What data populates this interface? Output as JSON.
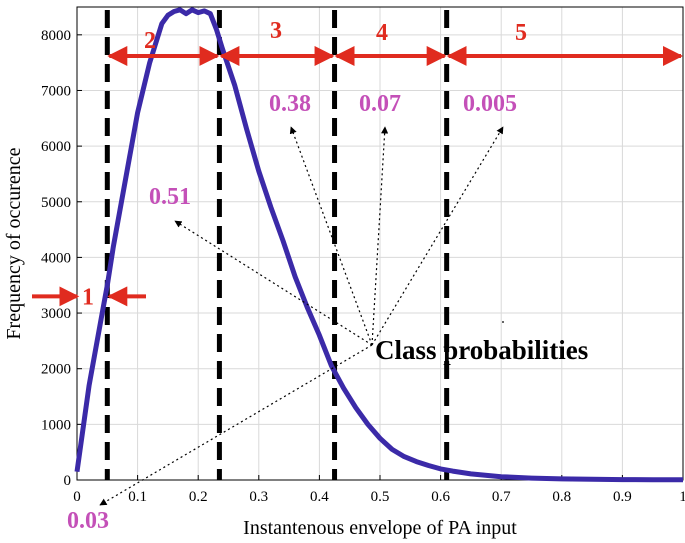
{
  "chart_data": {
    "type": "line",
    "title": "",
    "xlabel": "Instantenous envelope of PA input",
    "ylabel": "Frequency of occurence",
    "xlim": [
      0,
      1
    ],
    "ylim": [
      0,
      8500
    ],
    "xticks": [
      0,
      0.1,
      0.2,
      0.3,
      0.4,
      0.5,
      0.6,
      0.7,
      0.8,
      0.9,
      1
    ],
    "xtick_labels": [
      "0",
      "0.1",
      "0.2",
      "0.3",
      "0.4",
      "0.5",
      "0.6",
      "0.7",
      "0.8",
      "0.9",
      "1"
    ],
    "yticks": [
      0,
      1000,
      2000,
      3000,
      4000,
      5000,
      6000,
      7000,
      8000
    ],
    "ytick_labels": [
      "0",
      "1000",
      "2000",
      "3000",
      "4000",
      "5000",
      "6000",
      "7000",
      "8000"
    ],
    "grid": true,
    "series": [
      {
        "color": "#3b2aa8",
        "x": [
          0,
          0.02,
          0.04,
          0.05,
          0.06,
          0.08,
          0.1,
          0.12,
          0.14,
          0.15,
          0.16,
          0.17,
          0.18,
          0.19,
          0.2,
          0.21,
          0.22,
          0.23,
          0.24,
          0.26,
          0.28,
          0.3,
          0.32,
          0.34,
          0.36,
          0.38,
          0.4,
          0.42,
          0.44,
          0.46,
          0.48,
          0.5,
          0.52,
          0.54,
          0.56,
          0.58,
          0.6,
          0.62,
          0.65,
          0.7,
          0.75,
          0.8,
          0.85,
          0.9,
          0.95,
          1.0
        ],
        "y": [
          150,
          1700,
          2900,
          3500,
          4200,
          5400,
          6600,
          7500,
          8200,
          8350,
          8420,
          8450,
          8380,
          8450,
          8400,
          8430,
          8380,
          8100,
          7750,
          7100,
          6300,
          5550,
          4900,
          4300,
          3650,
          3100,
          2600,
          2050,
          1650,
          1300,
          1000,
          750,
          550,
          420,
          330,
          260,
          200,
          160,
          110,
          60,
          35,
          20,
          12,
          8,
          5,
          3
        ]
      }
    ],
    "boundaries": [
      0.05,
      0.235,
      0.425,
      0.61
    ],
    "classes": [
      {
        "label": "1",
        "probability": "0.03"
      },
      {
        "label": "2",
        "probability": "0.51"
      },
      {
        "label": "3",
        "probability": "0.38"
      },
      {
        "label": "4",
        "probability": "0.07"
      },
      {
        "label": "5",
        "probability": "0.005"
      }
    ],
    "annotation": "Class probabilities",
    "colors": {
      "curve": "#3b2aa8",
      "arrow": "#e02b1f",
      "probability": "#c450b8",
      "boundary": "#000000",
      "grid": "#d9d9d9"
    }
  }
}
